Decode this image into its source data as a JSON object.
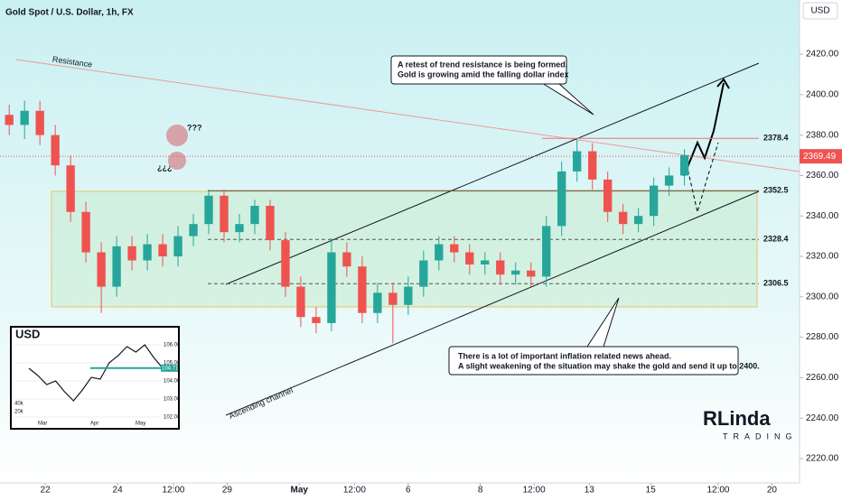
{
  "chart_data": {
    "type": "candlestick",
    "title": "Gold Spot / U.S. Dollar, 1h, FX",
    "currency": "USD",
    "up_color": "#26a69a",
    "down_color": "#ef5350",
    "open": [
      2390,
      2385,
      2392,
      2380,
      2365,
      2342,
      2322,
      2305,
      2325,
      2318,
      2326,
      2320,
      2330,
      2336,
      2350,
      2332,
      2336,
      2345,
      2328,
      2305,
      2290,
      2287,
      2322,
      2315,
      2292,
      2302,
      2296,
      2305,
      2318,
      2326,
      2322,
      2316,
      2318,
      2311,
      2313,
      2310,
      2335,
      2362,
      2372,
      2358,
      2342,
      2336,
      2340,
      2355,
      2360
    ],
    "high": [
      2395,
      2397,
      2397,
      2385,
      2370,
      2347,
      2327,
      2330,
      2330,
      2331,
      2331,
      2335,
      2341,
      2353,
      2353,
      2341,
      2348,
      2348,
      2332,
      2310,
      2295,
      2329,
      2327,
      2320,
      2307,
      2307,
      2310,
      2323,
      2330,
      2330,
      2326,
      2322,
      2322,
      2317,
      2317,
      2340,
      2367,
      2378,
      2376,
      2362,
      2346,
      2344,
      2359,
      2364,
      2373
    ],
    "low": [
      2380,
      2378,
      2375,
      2360,
      2337,
      2317,
      2292,
      2300,
      2313,
      2313,
      2315,
      2315,
      2325,
      2331,
      2327,
      2327,
      2331,
      2323,
      2300,
      2285,
      2282,
      2283,
      2310,
      2287,
      2287,
      2277,
      2291,
      2300,
      2313,
      2317,
      2311,
      2311,
      2306,
      2306,
      2305,
      2305,
      2330,
      2357,
      2353,
      2337,
      2331,
      2332,
      2335,
      2350,
      2355
    ],
    "close": [
      2385,
      2392,
      2380,
      2365,
      2342,
      2322,
      2305,
      2325,
      2318,
      2326,
      2320,
      2330,
      2336,
      2350,
      2332,
      2336,
      2345,
      2328,
      2305,
      2290,
      2287,
      2322,
      2315,
      2292,
      2302,
      2296,
      2305,
      2318,
      2326,
      2322,
      2316,
      2318,
      2311,
      2313,
      2310,
      2335,
      2362,
      2372,
      2358,
      2342,
      2336,
      2340,
      2355,
      2360,
      2370
    ],
    "xlim": [
      -0.6,
      51.5
    ],
    "xticks": [
      {
        "value": 2.35,
        "label": "22"
      },
      {
        "value": 7.06,
        "label": "24"
      },
      {
        "value": 10.7,
        "label": "12:00"
      },
      {
        "value": 14.2,
        "label": "29"
      },
      {
        "value": 18.9,
        "label": "May"
      },
      {
        "value": 22.5,
        "label": "12:00"
      },
      {
        "value": 26,
        "label": "6"
      },
      {
        "value": 30.7,
        "label": "8"
      },
      {
        "value": 34.2,
        "label": "12:00"
      },
      {
        "value": 37.8,
        "label": "13"
      },
      {
        "value": 41.8,
        "label": "15"
      },
      {
        "value": 46.2,
        "label": "12:00"
      },
      {
        "value": 49.7,
        "label": "20"
      }
    ],
    "ylim": [
      2206.6,
      2446.8
    ],
    "yticks": [
      {
        "value": 2220,
        "label": "2220.00"
      },
      {
        "value": 2240,
        "label": "2240.00"
      },
      {
        "value": 2260,
        "label": "2260.00"
      },
      {
        "value": 2280,
        "label": "2280.00"
      },
      {
        "value": 2300,
        "label": "2300.00"
      },
      {
        "value": 2320,
        "label": "2320.00"
      },
      {
        "value": 2340,
        "label": "2340.00"
      },
      {
        "value": 2360,
        "label": "2360.00"
      },
      {
        "value": 2380,
        "label": "2380.00"
      },
      {
        "value": 2400,
        "label": "2400.00"
      },
      {
        "value": 2420,
        "label": "2420.00"
      }
    ],
    "levels": [
      2378.4,
      2352.5,
      2328.4,
      2306.5
    ],
    "last_price": 2369.49,
    "annotations": {
      "resistance": "Resistance",
      "channel": "Ascending channel",
      "note_top": [
        "A retest of trend resistance is being formed.",
        "Gold is growing amid the falling dollar index"
      ],
      "note_bottom": [
        "There is a lot of important inflation related news ahead.",
        "A slight weakening of the situation may shake the gold and send it up to 2400."
      ],
      "question": "???",
      "question_inverted": "¿¿¿"
    },
    "logo": {
      "name": "RLinda",
      "sub": "TRADING"
    },
    "inset": {
      "title": "USD",
      "values": [
        104.7,
        104.3,
        103.8,
        104.0,
        103.4,
        102.9,
        103.5,
        104.2,
        104.1,
        105.0,
        105.4,
        105.9,
        105.6,
        106.0,
        105.3,
        104.71
      ],
      "ylim": [
        101.8,
        106.8
      ],
      "yticks": [
        {
          "value": 106,
          "label": "106.00"
        },
        {
          "value": 105,
          "label": "105.00"
        },
        {
          "value": 104,
          "label": "104.00"
        },
        {
          "value": 103,
          "label": "103.00"
        },
        {
          "value": 102,
          "label": "102.00"
        }
      ],
      "last": 104.71,
      "x_labels": [
        "Mar",
        "Apr",
        "May"
      ],
      "volume_labels": [
        "40k",
        "20k"
      ]
    }
  }
}
